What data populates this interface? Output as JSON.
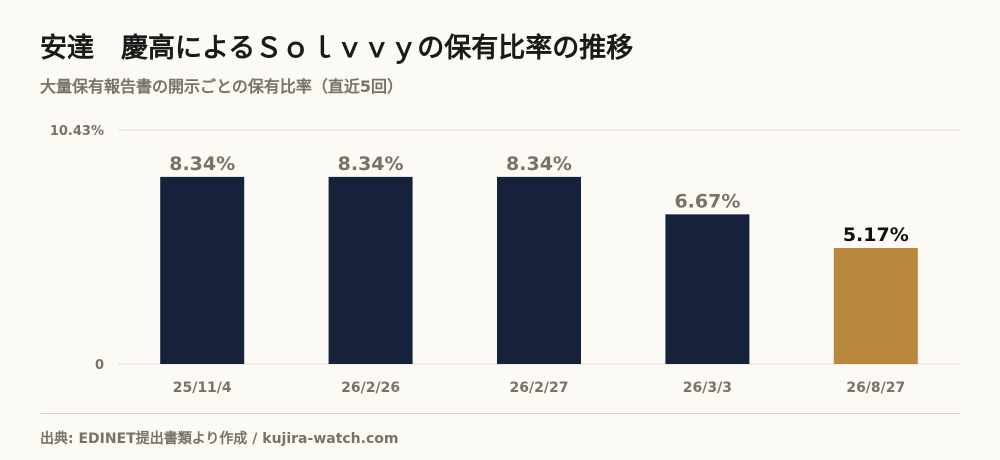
{
  "title": "安達　慶高によるＳｏｌｖｖｙの保有比率の推移",
  "subtitle": "大量保有報告書の開示ごとの保有比率（直近5回）",
  "source": "出典: EDINET提出書類より作成 / kujira-watch.com",
  "colors": {
    "bar": "#16213b",
    "highlight": "#b8893c",
    "label": "#7a7264",
    "label_highlight": "#111111",
    "grid": "#e2dccb"
  },
  "chart_data": {
    "type": "bar",
    "categories": [
      "25/11/4",
      "26/2/26",
      "26/2/27",
      "26/3/3",
      "26/8/27"
    ],
    "values": [
      8.34,
      8.34,
      8.34,
      6.67,
      5.17
    ],
    "value_labels": [
      "8.34%",
      "8.34%",
      "8.34%",
      "6.67%",
      "5.17%"
    ],
    "highlight_index": 4,
    "ylim": [
      0,
      10.43
    ],
    "yticks": [
      "0",
      "10.43%"
    ],
    "grid": true,
    "xlabel": "",
    "ylabel": ""
  }
}
